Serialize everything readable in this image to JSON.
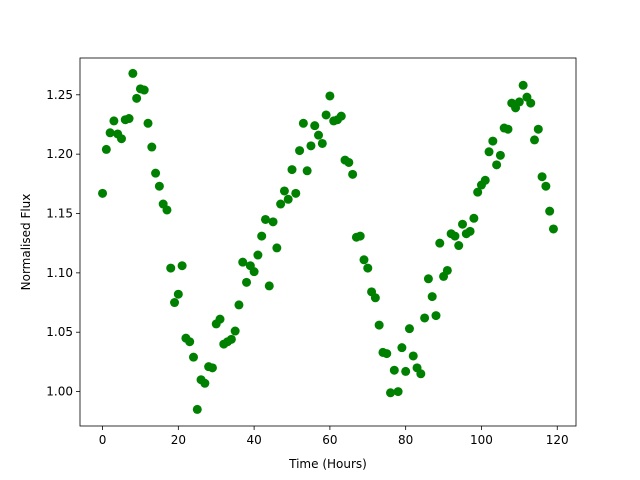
{
  "chart_data": {
    "type": "scatter",
    "xlabel": "Time (Hours)",
    "ylabel": "Normalised Flux",
    "x": [
      0,
      1,
      2,
      3,
      4,
      5,
      6,
      7,
      8,
      9,
      10,
      11,
      12,
      13,
      14,
      15,
      16,
      17,
      18,
      19,
      20,
      21,
      22,
      23,
      24,
      25,
      26,
      27,
      28,
      29,
      30,
      31,
      32,
      33,
      34,
      35,
      36,
      37,
      38,
      39,
      40,
      41,
      42,
      43,
      44,
      45,
      46,
      47,
      48,
      49,
      50,
      51,
      52,
      53,
      54,
      55,
      56,
      57,
      58,
      59,
      60,
      61,
      62,
      63,
      64,
      65,
      66,
      67,
      68,
      69,
      70,
      71,
      72,
      73,
      74,
      75,
      76,
      77,
      78,
      79,
      80,
      81,
      82,
      83,
      84,
      85,
      86,
      87,
      88,
      89,
      90,
      91,
      92,
      93,
      94,
      95,
      96,
      97,
      98,
      99,
      100,
      101,
      102,
      103,
      104,
      105,
      106,
      107,
      108,
      109,
      110,
      111,
      112,
      113,
      114,
      115,
      116,
      117,
      118,
      119
    ],
    "series": [
      {
        "color": "#008000",
        "values": [
          1.167,
          1.204,
          1.218,
          1.228,
          1.217,
          1.213,
          1.229,
          1.23,
          1.268,
          1.247,
          1.255,
          1.254,
          1.226,
          1.206,
          1.184,
          1.173,
          1.158,
          1.153,
          1.104,
          1.075,
          1.082,
          1.106,
          1.045,
          1.042,
          1.029,
          0.985,
          1.01,
          1.007,
          1.021,
          1.02,
          1.057,
          1.061,
          1.04,
          1.042,
          1.044,
          1.051,
          1.073,
          1.109,
          1.092,
          1.106,
          1.101,
          1.115,
          1.131,
          1.145,
          1.089,
          1.143,
          1.121,
          1.158,
          1.169,
          1.162,
          1.187,
          1.167,
          1.203,
          1.226,
          1.186,
          1.207,
          1.224,
          1.216,
          1.209,
          1.233,
          1.249,
          1.228,
          1.229,
          1.232,
          1.195,
          1.193,
          1.183,
          1.13,
          1.131,
          1.111,
          1.104,
          1.084,
          1.079,
          1.056,
          1.033,
          1.032,
          0.999,
          1.018,
          1.0,
          1.037,
          1.017,
          1.053,
          1.03,
          1.02,
          1.015,
          1.062,
          1.095,
          1.08,
          1.064,
          1.125,
          1.097,
          1.102,
          1.133,
          1.131,
          1.123,
          1.141,
          1.133,
          1.135,
          1.146,
          1.168,
          1.174,
          1.178,
          1.202,
          1.211,
          1.191,
          1.199,
          1.222,
          1.221,
          1.243,
          1.239,
          1.244,
          1.258,
          1.248,
          1.243,
          1.212,
          1.221,
          1.181,
          1.173,
          1.152,
          1.137
        ]
      }
    ],
    "xlim": [
      -5.95,
      124.95
    ],
    "xticks": [
      0,
      20,
      40,
      60,
      80,
      100,
      120
    ],
    "ylim": [
      0.971,
      1.281
    ],
    "yticks": [
      {
        "value": 1.0,
        "label": "1.00"
      },
      {
        "value": 1.05,
        "label": "1.05"
      },
      {
        "value": 1.1,
        "label": "1.10"
      },
      {
        "value": 1.15,
        "label": "1.15"
      },
      {
        "value": 1.2,
        "label": "1.20"
      },
      {
        "value": 1.25,
        "label": "1.25"
      }
    ]
  }
}
